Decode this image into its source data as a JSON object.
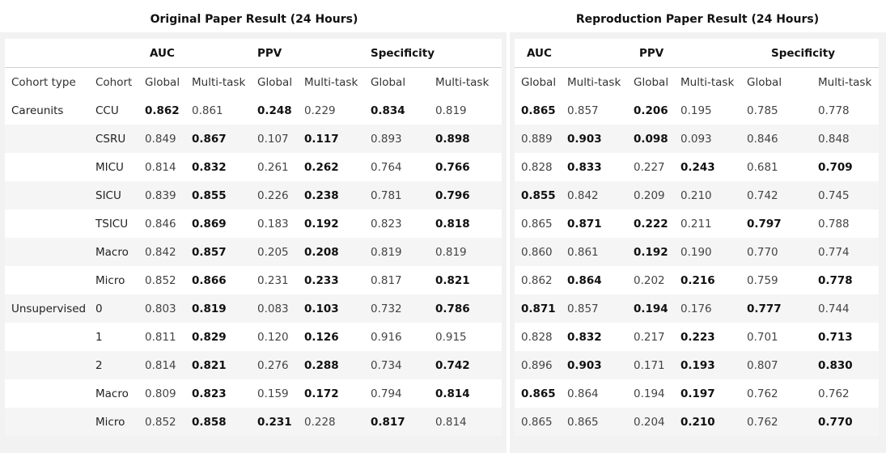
{
  "left_title": "Original Paper Result (24 Hours)",
  "right_title": "Reproduction Paper Result (24 Hours)",
  "metric_groups": [
    "AUC",
    "PPV",
    "Specificity"
  ],
  "col_labels": {
    "cohort_type": "Cohort type",
    "cohort": "Cohort",
    "global": "Global",
    "multitask": "Multi-task"
  },
  "rows": [
    {
      "type": "Careunits",
      "cohort": "CCU",
      "orig": [
        "0.862",
        "0.861",
        "0.248",
        "0.229",
        "0.834",
        "0.819"
      ],
      "orig_bold": [
        1,
        0,
        1,
        0,
        1,
        0
      ],
      "repr": [
        "0.865",
        "0.857",
        "0.206",
        "0.195",
        "0.785",
        "0.778"
      ],
      "repr_bold": [
        1,
        0,
        1,
        0,
        0,
        0
      ]
    },
    {
      "type": "",
      "cohort": "CSRU",
      "orig": [
        "0.849",
        "0.867",
        "0.107",
        "0.117",
        "0.893",
        "0.898"
      ],
      "orig_bold": [
        0,
        1,
        0,
        1,
        0,
        1
      ],
      "repr": [
        "0.889",
        "0.903",
        "0.098",
        "0.093",
        "0.846",
        "0.848"
      ],
      "repr_bold": [
        0,
        1,
        1,
        0,
        0,
        0
      ]
    },
    {
      "type": "",
      "cohort": "MICU",
      "orig": [
        "0.814",
        "0.832",
        "0.261",
        "0.262",
        "0.764",
        "0.766"
      ],
      "orig_bold": [
        0,
        1,
        0,
        1,
        0,
        1
      ],
      "repr": [
        "0.828",
        "0.833",
        "0.227",
        "0.243",
        "0.681",
        "0.709"
      ],
      "repr_bold": [
        0,
        1,
        0,
        1,
        0,
        1
      ]
    },
    {
      "type": "",
      "cohort": "SICU",
      "orig": [
        "0.839",
        "0.855",
        "0.226",
        "0.238",
        "0.781",
        "0.796"
      ],
      "orig_bold": [
        0,
        1,
        0,
        1,
        0,
        1
      ],
      "repr": [
        "0.855",
        "0.842",
        "0.209",
        "0.210",
        "0.742",
        "0.745"
      ],
      "repr_bold": [
        1,
        0,
        0,
        0,
        0,
        0
      ]
    },
    {
      "type": "",
      "cohort": "TSICU",
      "orig": [
        "0.846",
        "0.869",
        "0.183",
        "0.192",
        "0.823",
        "0.818"
      ],
      "orig_bold": [
        0,
        1,
        0,
        1,
        0,
        1
      ],
      "repr": [
        "0.865",
        "0.871",
        "0.222",
        "0.211",
        "0.797",
        "0.788"
      ],
      "repr_bold": [
        0,
        1,
        1,
        0,
        1,
        0
      ]
    },
    {
      "type": "",
      "cohort": "Macro",
      "orig": [
        "0.842",
        "0.857",
        "0.205",
        "0.208",
        "0.819",
        "0.819"
      ],
      "orig_bold": [
        0,
        1,
        0,
        1,
        0,
        0
      ],
      "repr": [
        "0.860",
        "0.861",
        "0.192",
        "0.190",
        "0.770",
        "0.774"
      ],
      "repr_bold": [
        0,
        0,
        1,
        0,
        0,
        0
      ]
    },
    {
      "type": "",
      "cohort": "Micro",
      "orig": [
        "0.852",
        "0.866",
        "0.231",
        "0.233",
        "0.817",
        "0.821"
      ],
      "orig_bold": [
        0,
        1,
        0,
        1,
        0,
        1
      ],
      "repr": [
        "0.862",
        "0.864",
        "0.202",
        "0.216",
        "0.759",
        "0.778"
      ],
      "repr_bold": [
        0,
        1,
        0,
        1,
        0,
        1
      ]
    },
    {
      "type": "Unsupervised",
      "cohort": "0",
      "orig": [
        "0.803",
        "0.819",
        "0.083",
        "0.103",
        "0.732",
        "0.786"
      ],
      "orig_bold": [
        0,
        1,
        0,
        1,
        0,
        1
      ],
      "repr": [
        "0.871",
        "0.857",
        "0.194",
        "0.176",
        "0.777",
        "0.744"
      ],
      "repr_bold": [
        1,
        0,
        1,
        0,
        1,
        0
      ]
    },
    {
      "type": "",
      "cohort": "1",
      "orig": [
        "0.811",
        "0.829",
        "0.120",
        "0.126",
        "0.916",
        "0.915"
      ],
      "orig_bold": [
        0,
        1,
        0,
        1,
        0,
        0
      ],
      "repr": [
        "0.828",
        "0.832",
        "0.217",
        "0.223",
        "0.701",
        "0.713"
      ],
      "repr_bold": [
        0,
        1,
        0,
        1,
        0,
        1
      ]
    },
    {
      "type": "",
      "cohort": "2",
      "orig": [
        "0.814",
        "0.821",
        "0.276",
        "0.288",
        "0.734",
        "0.742"
      ],
      "orig_bold": [
        0,
        1,
        0,
        1,
        0,
        1
      ],
      "repr": [
        "0.896",
        "0.903",
        "0.171",
        "0.193",
        "0.807",
        "0.830"
      ],
      "repr_bold": [
        0,
        1,
        0,
        1,
        0,
        1
      ]
    },
    {
      "type": "",
      "cohort": "Macro",
      "orig": [
        "0.809",
        "0.823",
        "0.159",
        "0.172",
        "0.794",
        "0.814"
      ],
      "orig_bold": [
        0,
        1,
        0,
        1,
        0,
        1
      ],
      "repr": [
        "0.865",
        "0.864",
        "0.194",
        "0.197",
        "0.762",
        "0.762"
      ],
      "repr_bold": [
        1,
        0,
        0,
        1,
        0,
        0
      ]
    },
    {
      "type": "",
      "cohort": "Micro",
      "orig": [
        "0.852",
        "0.858",
        "0.231",
        "0.228",
        "0.817",
        "0.814"
      ],
      "orig_bold": [
        0,
        1,
        1,
        0,
        1,
        0
      ],
      "repr": [
        "0.865",
        "0.865",
        "0.204",
        "0.210",
        "0.762",
        "0.770"
      ],
      "repr_bold": [
        0,
        0,
        0,
        1,
        0,
        1
      ]
    }
  ]
}
